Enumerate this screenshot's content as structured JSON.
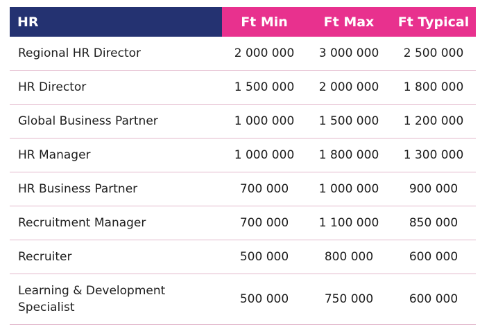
{
  "table": {
    "headers": [
      "HR",
      "Ft Min",
      "Ft Max",
      "Ft Typical"
    ],
    "rows": [
      {
        "role": "Regional HR Director",
        "min": "2 000 000",
        "max": "3 000 000",
        "typical": "2 500 000"
      },
      {
        "role": "HR Director",
        "min": "1 500 000",
        "max": "2 000 000",
        "typical": "1 800 000"
      },
      {
        "role": "Global Business Partner",
        "min": "1 000 000",
        "max": "1 500 000",
        "typical": "1 200 000"
      },
      {
        "role": "HR Manager",
        "min": "1 000 000",
        "max": "1 800 000",
        "typical": "1 300 000"
      },
      {
        "role": "HR Business Partner",
        "min": "700 000",
        "max": "1 000 000",
        "typical": "900 000"
      },
      {
        "role": "Recruitment Manager",
        "min": "700 000",
        "max": "1 100 000",
        "typical": "850 000"
      },
      {
        "role": "Recruiter",
        "min": "500 000",
        "max": "800 000",
        "typical": "600 000"
      },
      {
        "role": "Learning & Development Specialist",
        "min": "500 000",
        "max": "750 000",
        "typical": "600 000"
      }
    ]
  },
  "colors": {
    "header_primary": "#243271",
    "header_accent": "#e8318e",
    "row_divider": "#e2b7cb"
  }
}
